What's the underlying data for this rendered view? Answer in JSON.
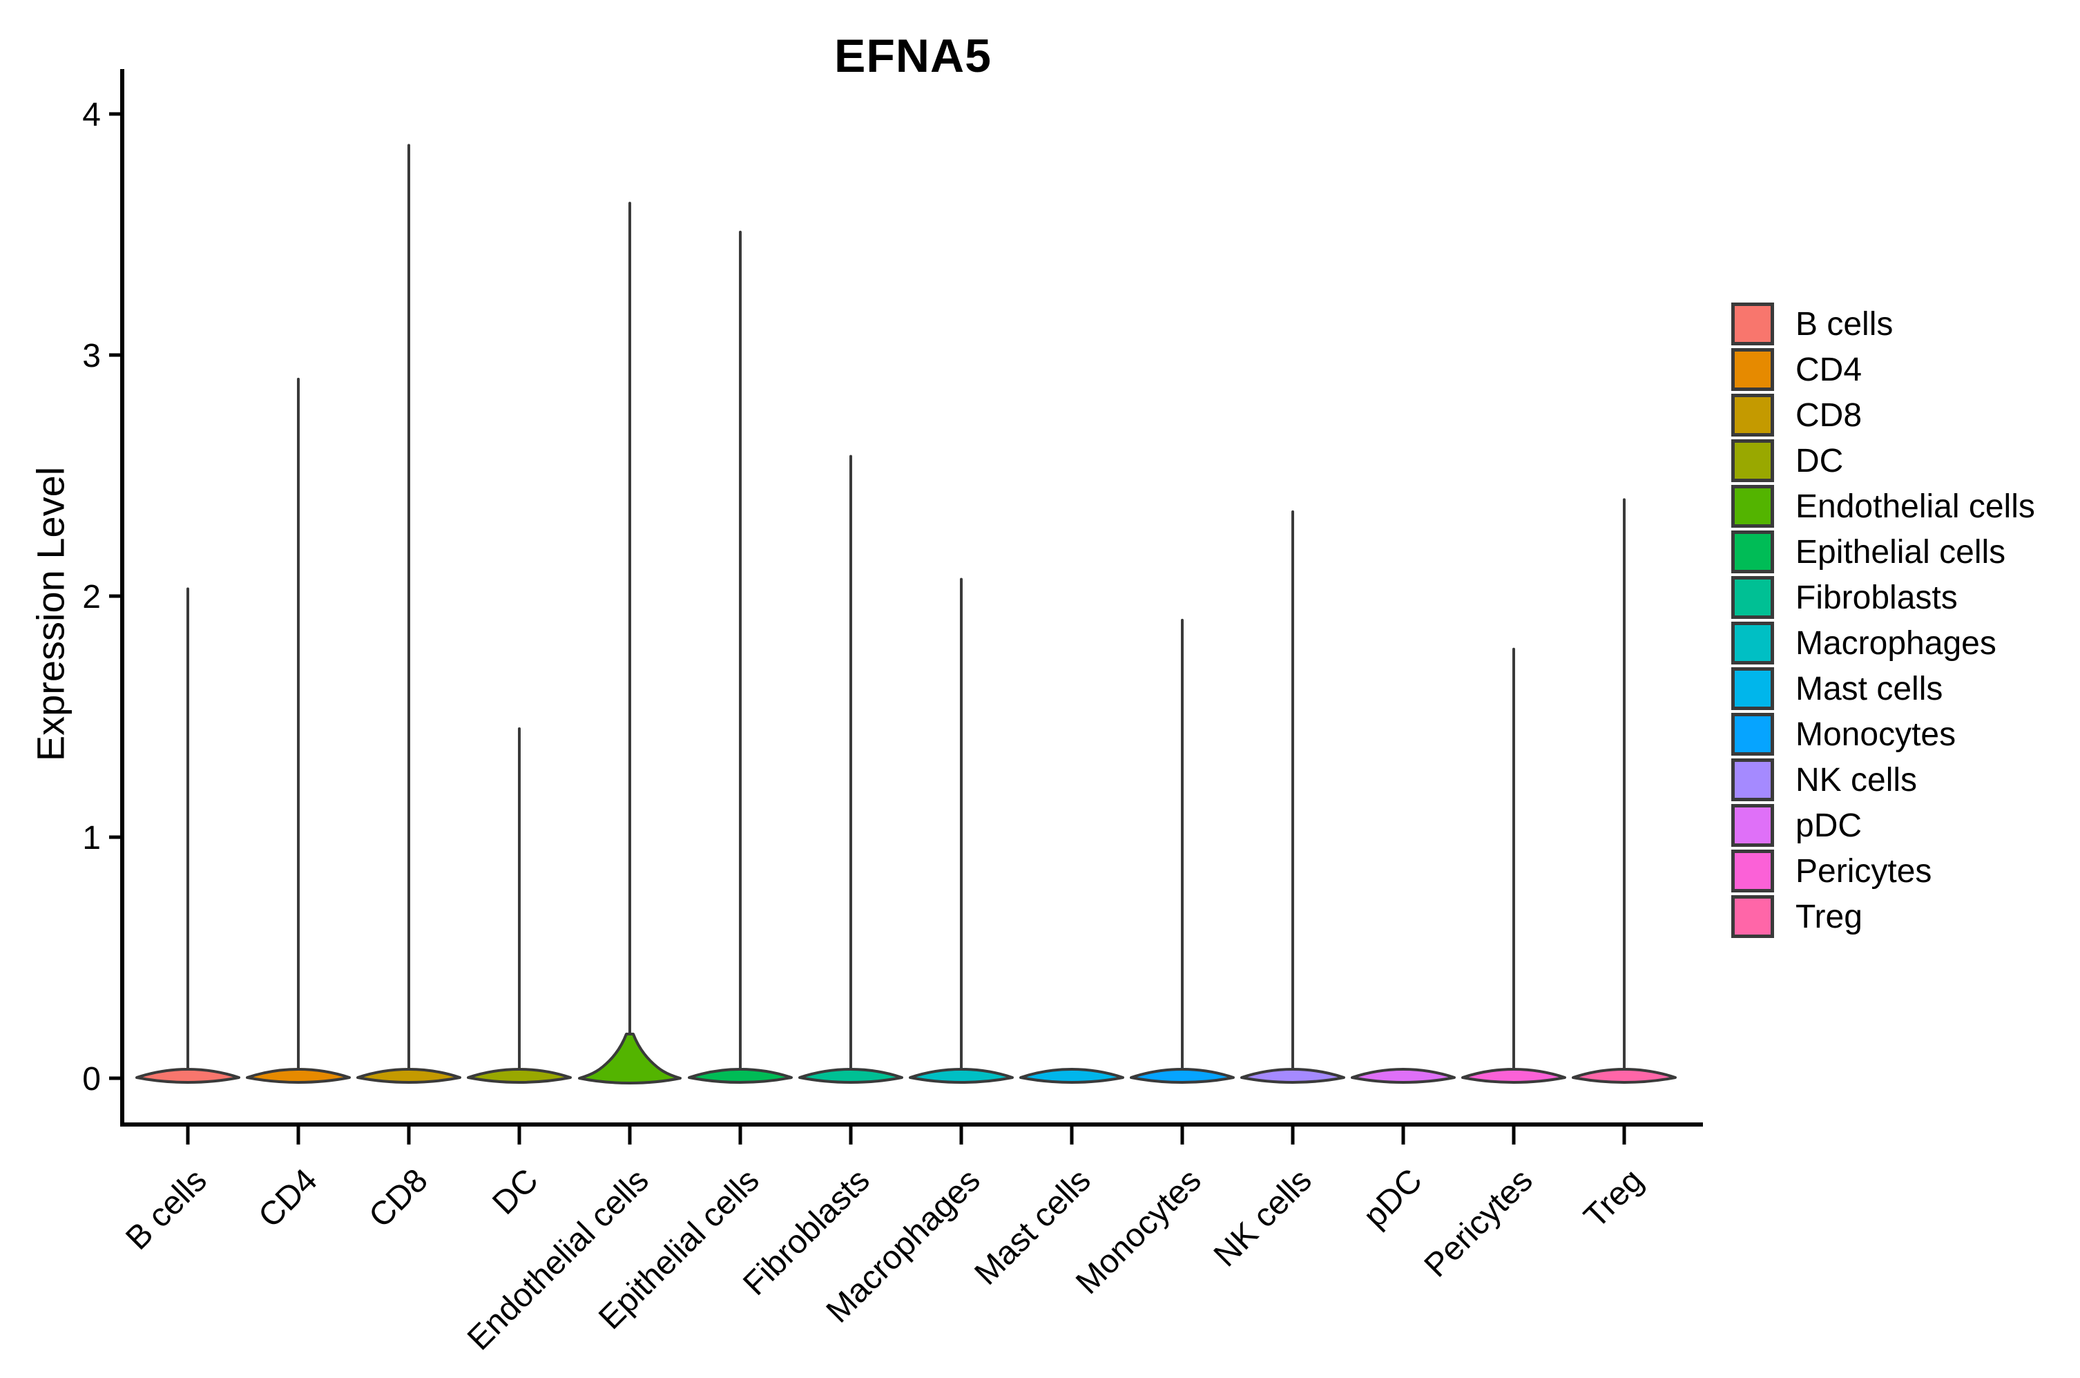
{
  "figure": {
    "background_color": "#FFFFFF"
  },
  "chart_data": {
    "type": "violin",
    "title": "EFNA5",
    "xlabel": "",
    "ylabel": "Expression Level",
    "ylim": [
      0,
      4
    ],
    "yticks": [
      0,
      1,
      2,
      3,
      4
    ],
    "x_tick_rotation_deg": 45,
    "grid": false,
    "legend_position": "right",
    "categories": [
      "B cells",
      "CD4",
      "CD8",
      "DC",
      "Endothelial cells",
      "Epithelial cells",
      "Fibroblasts",
      "Macrophages",
      "Mast cells",
      "Monocytes",
      "NK cells",
      "pDC",
      "Pericytes",
      "Treg"
    ],
    "violins": [
      {
        "label": "B cells",
        "color": "#F8766D",
        "max_expression": 2.03,
        "zero_bulge": "flat",
        "has_spike": true
      },
      {
        "label": "CD4",
        "color": "#E68A00",
        "max_expression": 2.9,
        "zero_bulge": "flat",
        "has_spike": true
      },
      {
        "label": "CD8",
        "color": "#C49A00",
        "max_expression": 3.87,
        "zero_bulge": "flat",
        "has_spike": true
      },
      {
        "label": "DC",
        "color": "#99A800",
        "max_expression": 1.45,
        "zero_bulge": "flat",
        "has_spike": true
      },
      {
        "label": "Endothelial cells",
        "color": "#53B400",
        "max_expression": 3.63,
        "zero_bulge": "dome",
        "has_spike": true
      },
      {
        "label": "Epithelial cells",
        "color": "#00BC56",
        "max_expression": 3.51,
        "zero_bulge": "flat",
        "has_spike": true
      },
      {
        "label": "Fibroblasts",
        "color": "#00C094",
        "max_expression": 2.58,
        "zero_bulge": "flat",
        "has_spike": true
      },
      {
        "label": "Macrophages",
        "color": "#00BFC4",
        "max_expression": 2.07,
        "zero_bulge": "flat",
        "has_spike": true
      },
      {
        "label": "Mast cells",
        "color": "#00B6EB",
        "max_expression": 0,
        "zero_bulge": "flat",
        "has_spike": false
      },
      {
        "label": "Monocytes",
        "color": "#06A4FF",
        "max_expression": 1.9,
        "zero_bulge": "flat",
        "has_spike": true
      },
      {
        "label": "NK cells",
        "color": "#A58AFF",
        "max_expression": 2.35,
        "zero_bulge": "flat",
        "has_spike": true
      },
      {
        "label": "pDC",
        "color": "#DF70F8",
        "max_expression": 0,
        "zero_bulge": "flat",
        "has_spike": false
      },
      {
        "label": "Pericytes",
        "color": "#FB61D7",
        "max_expression": 1.78,
        "zero_bulge": "flat",
        "has_spike": true
      },
      {
        "label": "Treg",
        "color": "#FF66A8",
        "max_expression": 2.4,
        "zero_bulge": "flat",
        "has_spike": true
      }
    ]
  },
  "styles": {
    "axis_color": "#000000",
    "tick_label_color": "#000000",
    "violin_outline_color": "#3A3A3A",
    "legend_swatch_border": "#3A3A3A"
  }
}
